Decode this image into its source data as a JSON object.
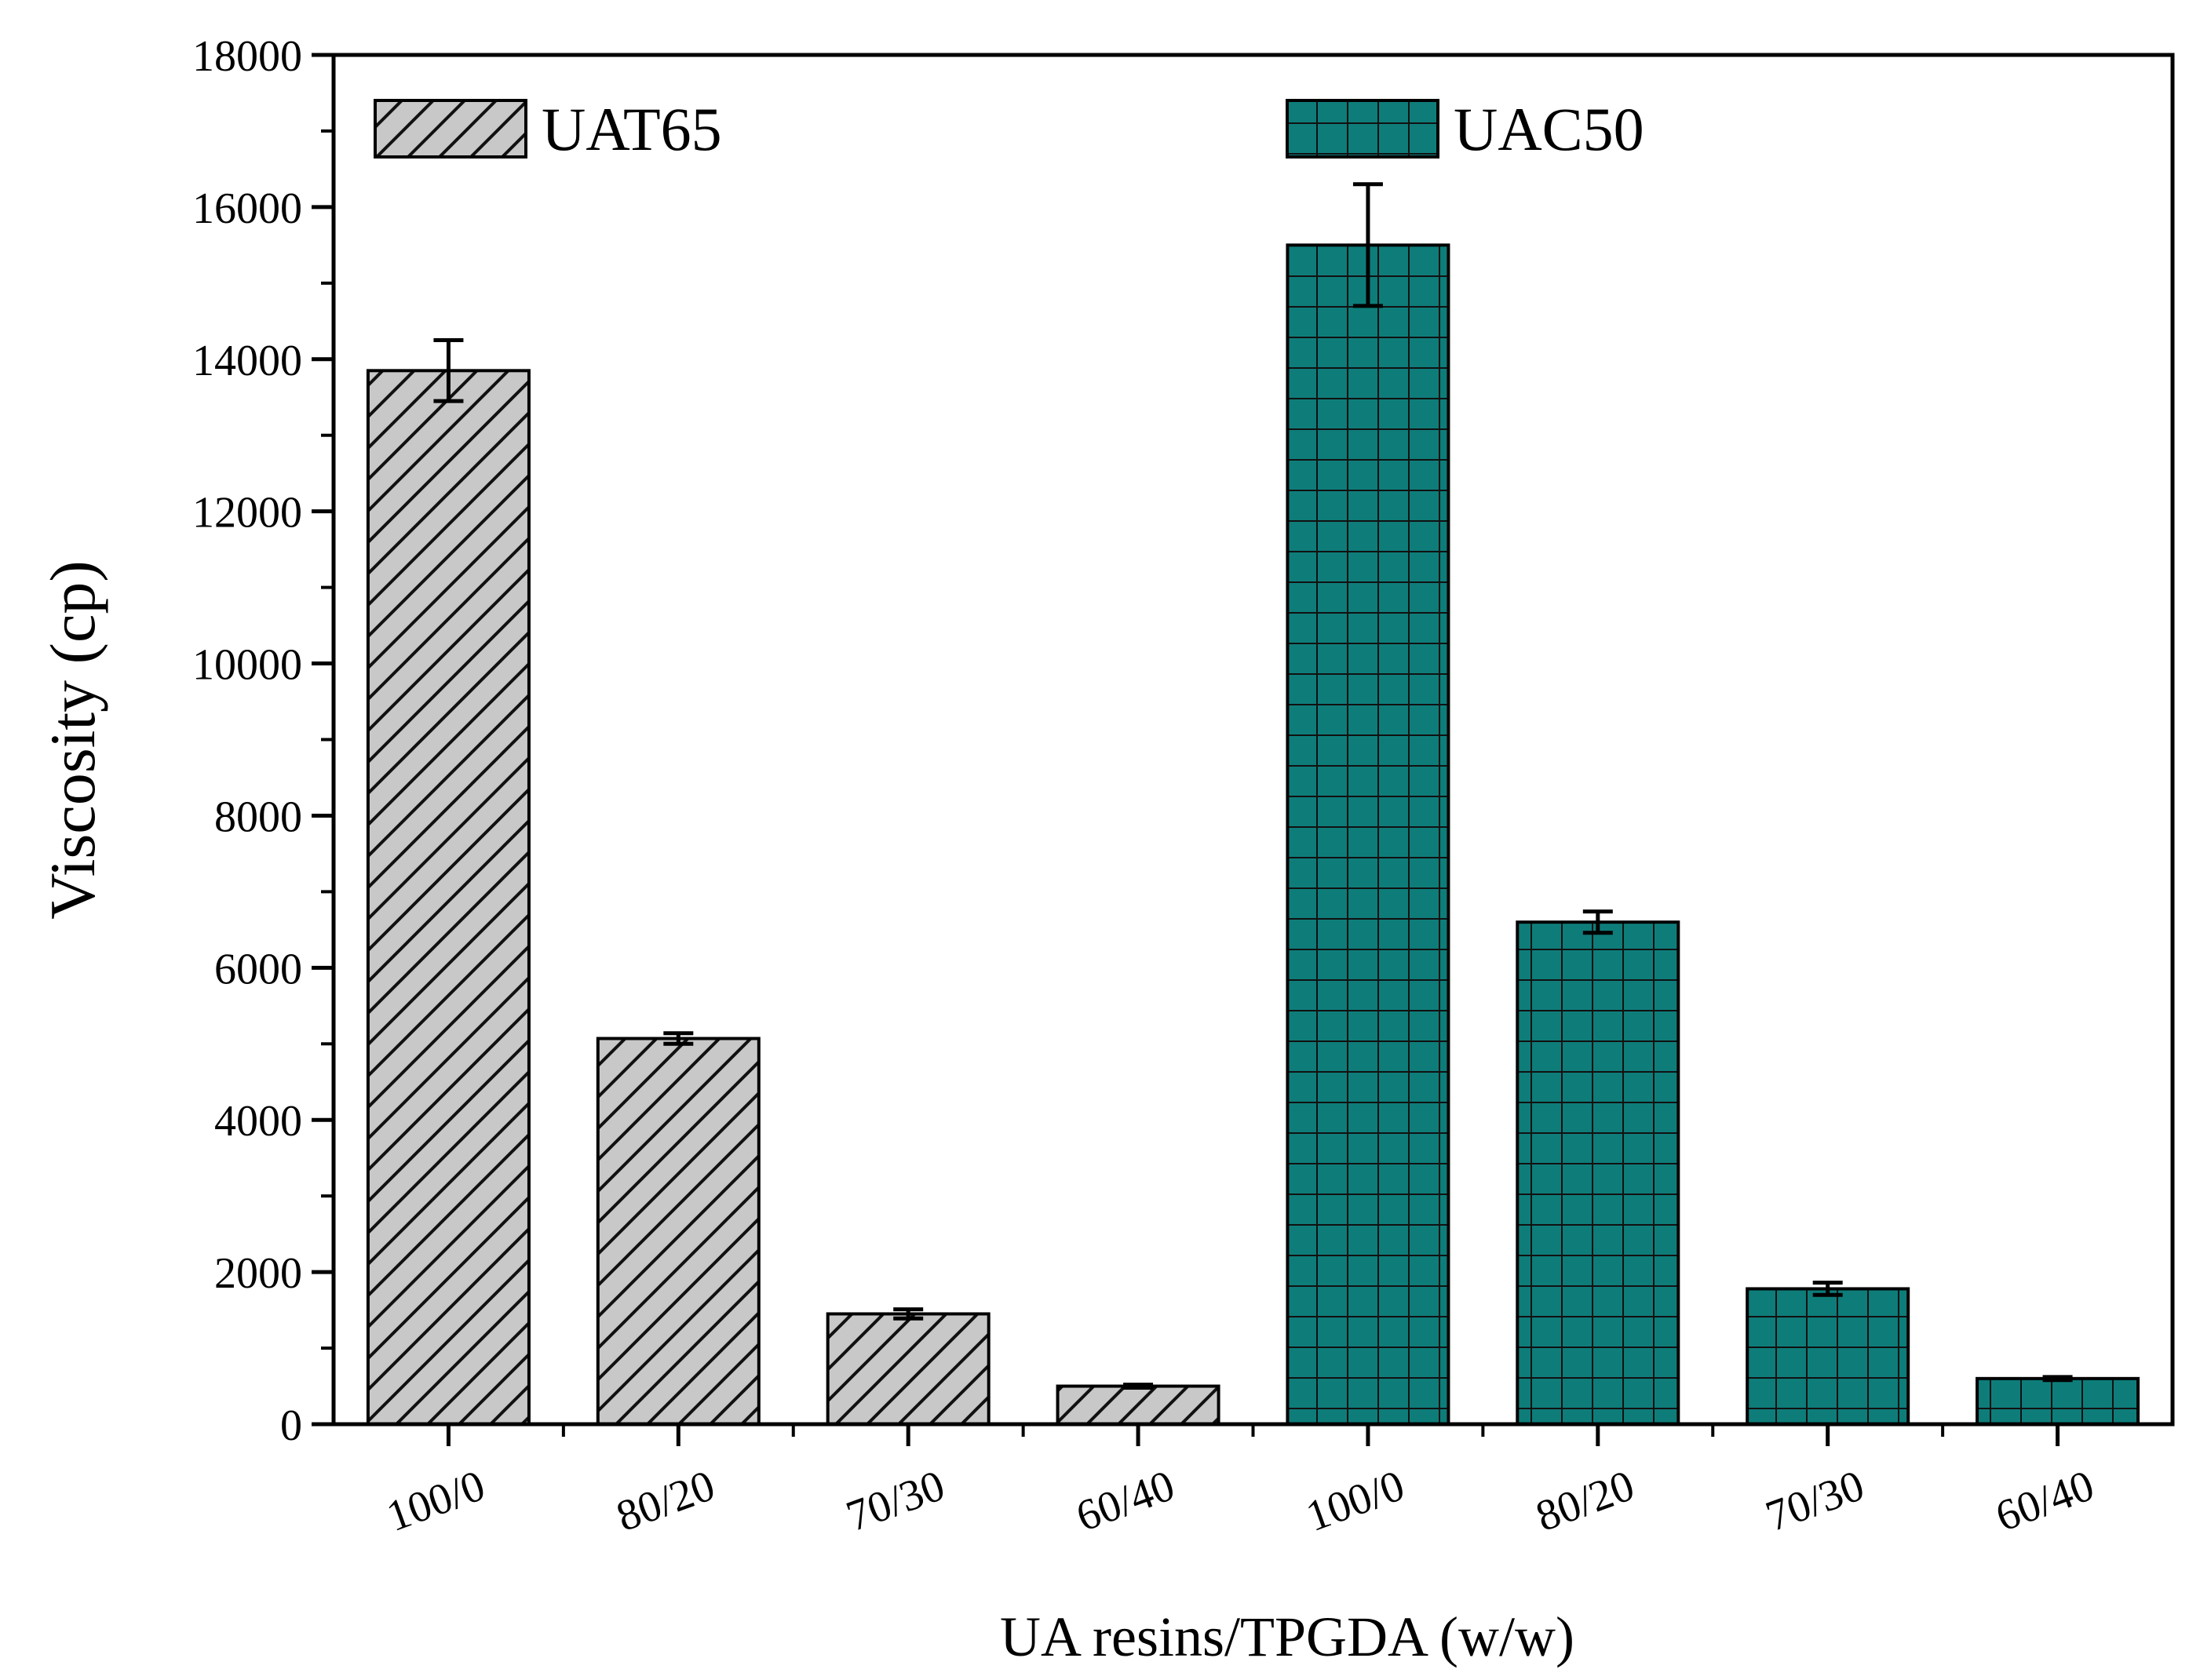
{
  "chart_data": {
    "type": "bar",
    "title": "",
    "xlabel": "UA resins/TPGDA (w/w)",
    "ylabel": "Viscosity (cp)",
    "ylim": [
      0,
      18000
    ],
    "yticks": [
      0,
      2000,
      4000,
      6000,
      8000,
      10000,
      12000,
      14000,
      16000,
      18000
    ],
    "legend_position": "top",
    "series": [
      {
        "name": "UAT65",
        "pattern": "diagonal-hatch",
        "color": "#c8c8c8",
        "categories": [
          "100/0",
          "80/20",
          "70/30",
          "60/40"
        ],
        "values": [
          13850,
          5070,
          1450,
          500
        ],
        "errors": [
          400,
          70,
          60,
          20
        ]
      },
      {
        "name": "UAC50",
        "pattern": "grid",
        "color": "#0e7d7a",
        "categories": [
          "100/0",
          "80/20",
          "70/30",
          "60/40"
        ],
        "values": [
          15500,
          6600,
          1780,
          600
        ],
        "errors": [
          800,
          140,
          80,
          20
        ]
      }
    ]
  }
}
